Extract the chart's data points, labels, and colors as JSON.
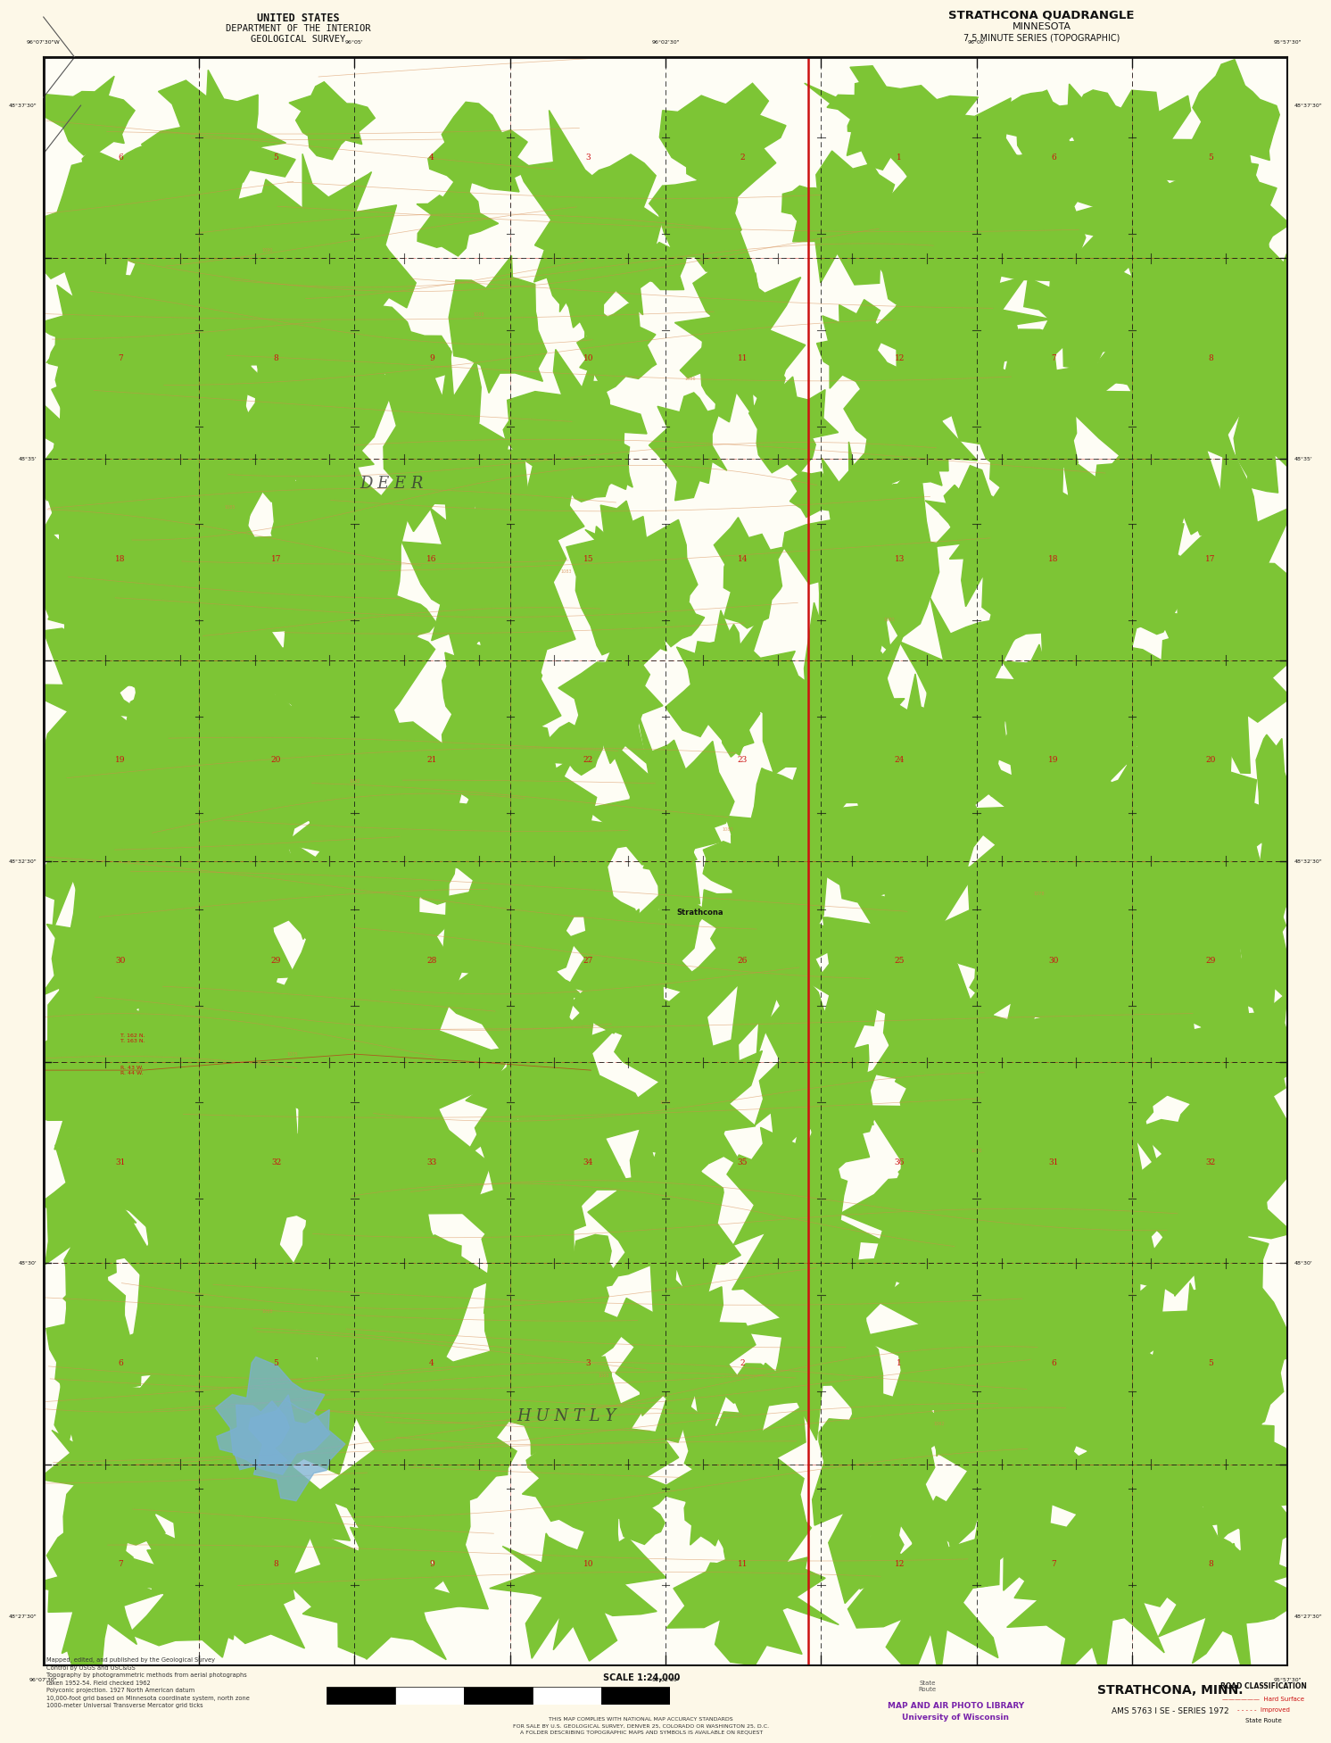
{
  "title_right_line1": "STRATHCONA QUADRANGLE",
  "title_right_line2": "MINNESOTA",
  "title_right_line3": "7.5 MINUTE SERIES (TOPOGRAPHIC)",
  "title_left_line1": "UNITED STATES",
  "title_left_line2": "DEPARTMENT OF THE INTERIOR",
  "title_left_line3": "GEOLOGICAL SURVEY",
  "bottom_label": "STRATHCONA, MINN.",
  "bottom_series": "AMS 5763 I SE - SERIES 1972",
  "outer_bg": "#fdf8e8",
  "map_bg": "#fefdf5",
  "green_color": "#7dc535",
  "contour_color": "#d4874a",
  "red_road": "#cc1111",
  "blue_water": "#7ab0d4",
  "black_grid": "#444444",
  "text_dark": "#111111",
  "red_text": "#cc1111",
  "purple_text": "#7722aa",
  "fig_width": 16.03,
  "fig_height": 19.93,
  "map_l": 0.082,
  "map_r": 0.952,
  "map_b": 0.052,
  "map_t": 0.956
}
